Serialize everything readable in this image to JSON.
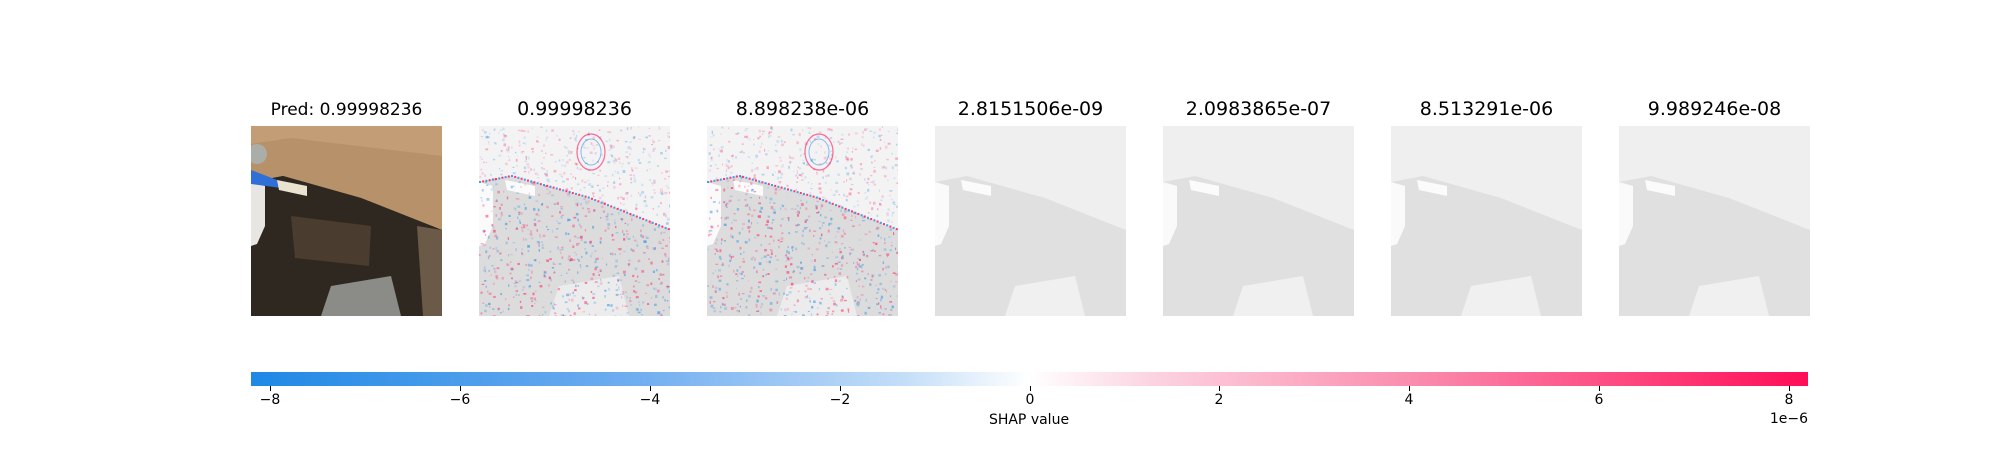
{
  "chart_data": {
    "type": "heatmap",
    "panels": [
      {
        "title_prefix": "Pred: ",
        "title": "0.99998236",
        "kind": "original-image"
      },
      {
        "title": "0.99998236",
        "kind": "shap-heatmap",
        "strength": 1.0
      },
      {
        "title": "8.898238e-06",
        "kind": "shap-heatmap",
        "strength": 1.0
      },
      {
        "title": "2.8151506e-09",
        "kind": "shap-heatmap",
        "strength": 0.0
      },
      {
        "title": "2.0983865e-07",
        "kind": "shap-heatmap",
        "strength": 0.0
      },
      {
        "title": "8.513291e-06",
        "kind": "shap-heatmap",
        "strength": 0.0
      },
      {
        "title": "9.989246e-08",
        "kind": "shap-heatmap",
        "strength": 0.0
      }
    ],
    "colorbar": {
      "label": "SHAP value",
      "offset_text": "1e−6",
      "vmin": -8.2,
      "vmax": 8.2,
      "ticks": [
        -8,
        -6,
        -4,
        -2,
        0,
        2,
        4,
        6,
        8
      ],
      "tick_labels": [
        "−8",
        "−6",
        "−4",
        "−2",
        "0",
        "2",
        "4",
        "6",
        "8"
      ],
      "colors": {
        "negative": "#1e88e5",
        "zero": "#ffffff",
        "positive": "#ff0d57"
      }
    }
  }
}
